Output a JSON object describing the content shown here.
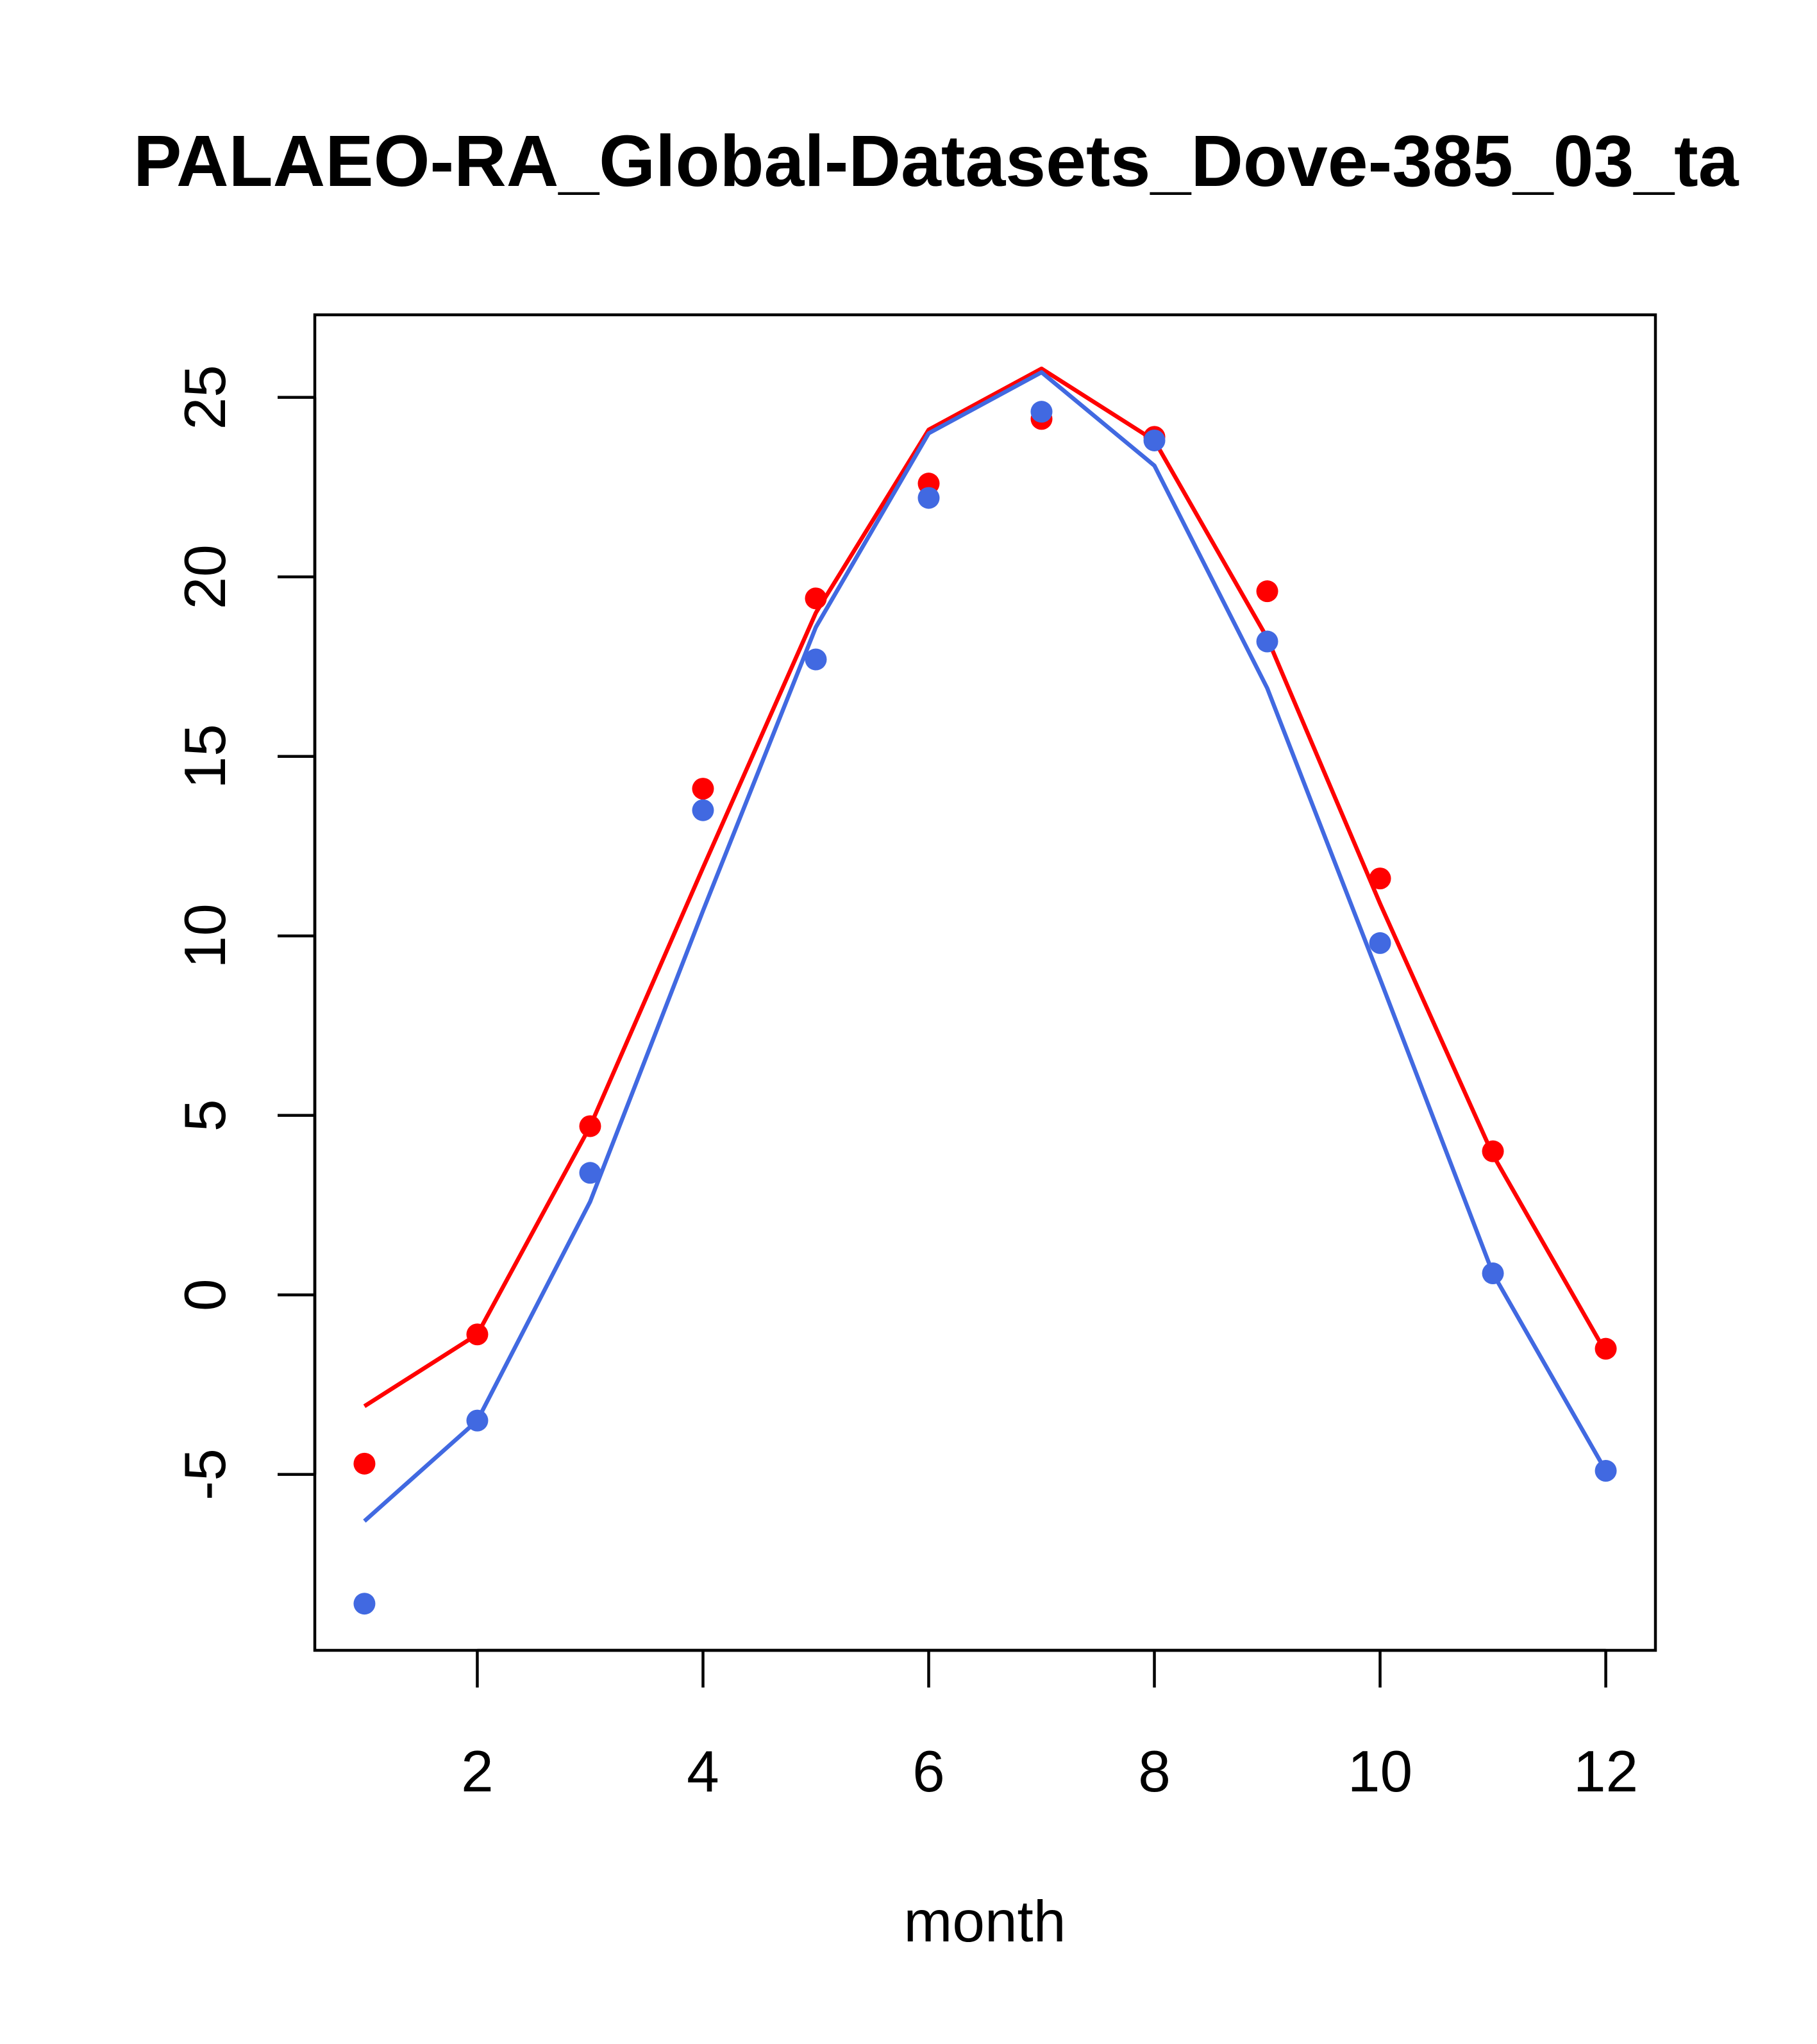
{
  "chart_data": {
    "type": "line",
    "title": "PALAEO-RA_Global-Datasets_Dove-385_03_ta",
    "xlabel": "month",
    "ylabel": "",
    "xlim": [
      0.56,
      12.44
    ],
    "ylim": [
      -9.9,
      27.3
    ],
    "x_ticks": [
      2,
      4,
      6,
      8,
      10,
      12
    ],
    "y_ticks": [
      -5,
      0,
      5,
      10,
      15,
      20,
      25
    ],
    "grid": false,
    "legend": "none",
    "x": [
      1,
      2,
      3,
      4,
      5,
      6,
      7,
      8,
      9,
      10,
      11,
      12
    ],
    "series": [
      {
        "color": "#ff0000",
        "line": [
          -3.1,
          -1.1,
          4.7,
          11.9,
          19.0,
          24.1,
          25.8,
          23.8,
          18.3,
          10.9,
          3.9,
          -1.6
        ],
        "points": [
          -4.7,
          -1.1,
          4.7,
          14.1,
          19.4,
          22.6,
          24.4,
          23.9,
          19.6,
          11.6,
          4.0,
          -1.5
        ]
      },
      {
        "color": "#4169e1",
        "line": [
          -6.3,
          -3.5,
          2.6,
          10.7,
          18.6,
          24.0,
          25.7,
          23.1,
          16.9,
          8.8,
          0.6,
          -4.9
        ],
        "points": [
          -8.6,
          -3.5,
          3.4,
          13.5,
          17.7,
          22.2,
          24.6,
          23.8,
          18.2,
          9.8,
          0.6,
          -4.9
        ]
      }
    ]
  }
}
